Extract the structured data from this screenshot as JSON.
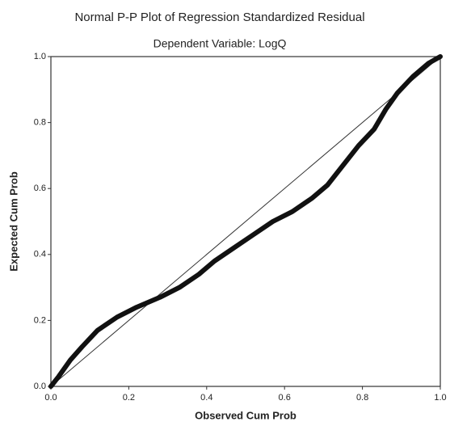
{
  "chart_data": {
    "type": "line",
    "title": "Normal P-P Plot of Regression Standardized Residual",
    "subtitle": "Dependent Variable: LogQ",
    "x_label": "Observed Cum Prob",
    "y_label": "Expected Cum Prob",
    "x": [
      0,
      0.02,
      0.05,
      0.08,
      0.12,
      0.17,
      0.22,
      0.28,
      0.33,
      0.38,
      0.42,
      0.47,
      0.52,
      0.57,
      0.62,
      0.67,
      0.71,
      0.75,
      0.79,
      0.83,
      0.86,
      0.89,
      0.93,
      0.97,
      1
    ],
    "y": [
      0,
      0.03,
      0.08,
      0.12,
      0.17,
      0.21,
      0.24,
      0.27,
      0.3,
      0.34,
      0.38,
      0.42,
      0.46,
      0.5,
      0.53,
      0.57,
      0.61,
      0.67,
      0.73,
      0.78,
      0.84,
      0.89,
      0.94,
      0.98,
      1
    ],
    "color": "#111111",
    "xlim": [
      0,
      1
    ],
    "ylim": [
      0,
      1
    ],
    "xticks": [
      {
        "value": 0,
        "label": "0.0"
      },
      0.2,
      0.4,
      0.6,
      0.8,
      {
        "value": 1,
        "label": "1.0"
      }
    ],
    "yticks": [
      {
        "value": 0,
        "label": "0.0"
      },
      0.2,
      0.4,
      0.6,
      0.8,
      {
        "value": 1,
        "label": "1.0"
      }
    ]
  }
}
